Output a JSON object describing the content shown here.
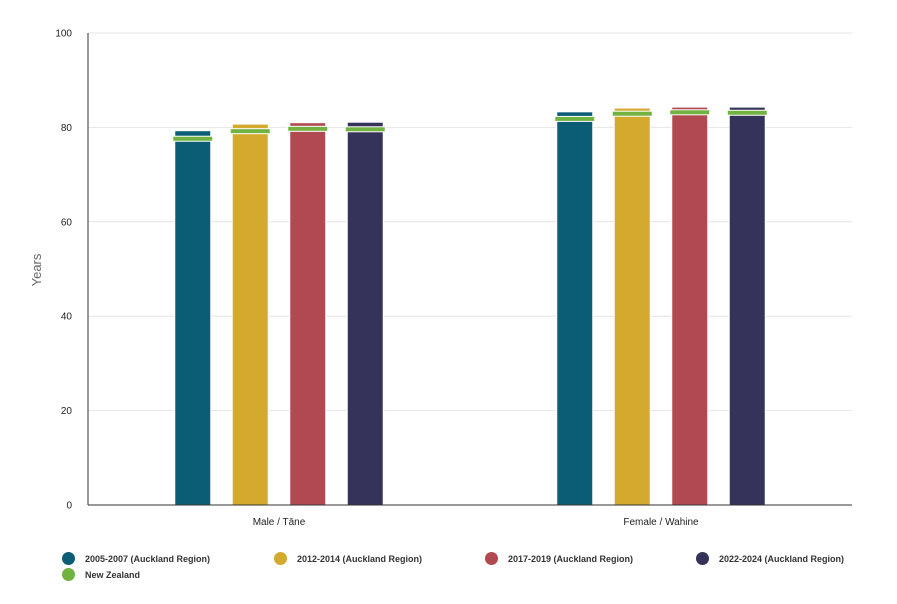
{
  "chart_data": {
    "type": "bar",
    "ylabel": "Years",
    "ylim": [
      0,
      100
    ],
    "yticks": [
      "0",
      "20",
      "40",
      "60",
      "80",
      "100"
    ],
    "categories": [
      "Male / Tāne",
      "Female / Wahine"
    ],
    "series": [
      {
        "name": "2005-2007 (Auckland Region)",
        "color": "#0b5c75",
        "values": [
          79.3,
          83.3
        ]
      },
      {
        "name": "2012-2014 (Auckland Region)",
        "color": "#d4aa2e",
        "values": [
          80.7,
          84.1
        ]
      },
      {
        "name": "2017-2019 (Auckland Region)",
        "color": "#b04a50",
        "values": [
          81.0,
          84.3
        ]
      },
      {
        "name": "2022-2024 (Auckland Region)",
        "color": "#35335a",
        "values": [
          81.1,
          84.3
        ]
      }
    ],
    "reference": {
      "name": "New Zealand",
      "color": "#72b240",
      "values": [
        [
          77.6,
          81.8
        ],
        [
          79.2,
          82.9
        ],
        [
          79.7,
          83.2
        ],
        [
          79.6,
          83.1
        ]
      ]
    },
    "grid": true,
    "legend_position": "bottom"
  }
}
